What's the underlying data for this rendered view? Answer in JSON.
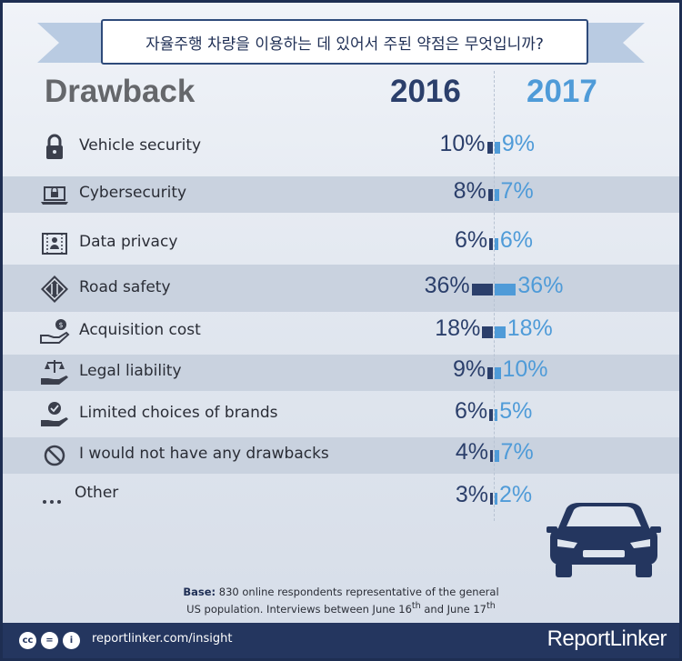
{
  "title": "자율주행 차량을 이용하는 데 있어서 주된 약점은 무엇입니까?",
  "headers": {
    "category": "Drawback",
    "year1": "2016",
    "year2": "2017"
  },
  "chart_data": {
    "type": "bar",
    "categories": [
      "Vehicle security",
      "Cybersecurity",
      "Data privacy",
      "Road safety",
      "Acquisition cost",
      "Legal liability",
      "Limited choices of brands",
      "I would not have any drawbacks",
      "Other"
    ],
    "series": [
      {
        "name": "2016",
        "values": [
          10,
          8,
          6,
          36,
          18,
          9,
          6,
          4,
          3
        ],
        "color": "#2b3f6b"
      },
      {
        "name": "2017",
        "values": [
          9,
          7,
          6,
          36,
          18,
          10,
          5,
          7,
          2
        ],
        "color": "#4f9bd8"
      }
    ],
    "unit": "%"
  },
  "rows": [
    {
      "label": "Vehicle security",
      "v16": "10%",
      "v17": "9%",
      "icon": "lock-icon"
    },
    {
      "label": "Cybersecurity",
      "v16": "8%",
      "v17": "7%",
      "icon": "laptop-lock-icon"
    },
    {
      "label": "Data privacy",
      "v16": "6%",
      "v17": "6%",
      "icon": "privacy-shield-icon"
    },
    {
      "label": "Road safety",
      "v16": "36%",
      "v17": "36%",
      "icon": "road-sign-icon"
    },
    {
      "label": "Acquisition cost",
      "v16": "18%",
      "v17": "18%",
      "icon": "hand-money-icon"
    },
    {
      "label": "Legal liability",
      "v16": "9%",
      "v17": "10%",
      "icon": "scales-hand-icon"
    },
    {
      "label": "Limited choices of brands",
      "v16": "6%",
      "v17": "5%",
      "icon": "hand-badge-icon"
    },
    {
      "label": "I would not have any drawbacks",
      "v16": "4%",
      "v17": "7%",
      "icon": "prohibited-icon"
    },
    {
      "label": "Other",
      "v16": "3%",
      "v17": "2%",
      "icon": "ellipsis-icon"
    }
  ],
  "base": {
    "bold": "Base:",
    "text1": " 830 online respondents representative of the general",
    "text2a": "US population. Interviews between June 16",
    "sup1": "th",
    "text2b": " and June 17",
    "sup2": "th"
  },
  "footer": {
    "site": "reportlinker.com/insight",
    "brand": "ReportLinker",
    "cc": "cc",
    "eq": "=",
    "by": "i"
  },
  "colors": {
    "navy": "#2b3f6b",
    "blue": "#4f9bd8",
    "footer": "#24365f"
  }
}
